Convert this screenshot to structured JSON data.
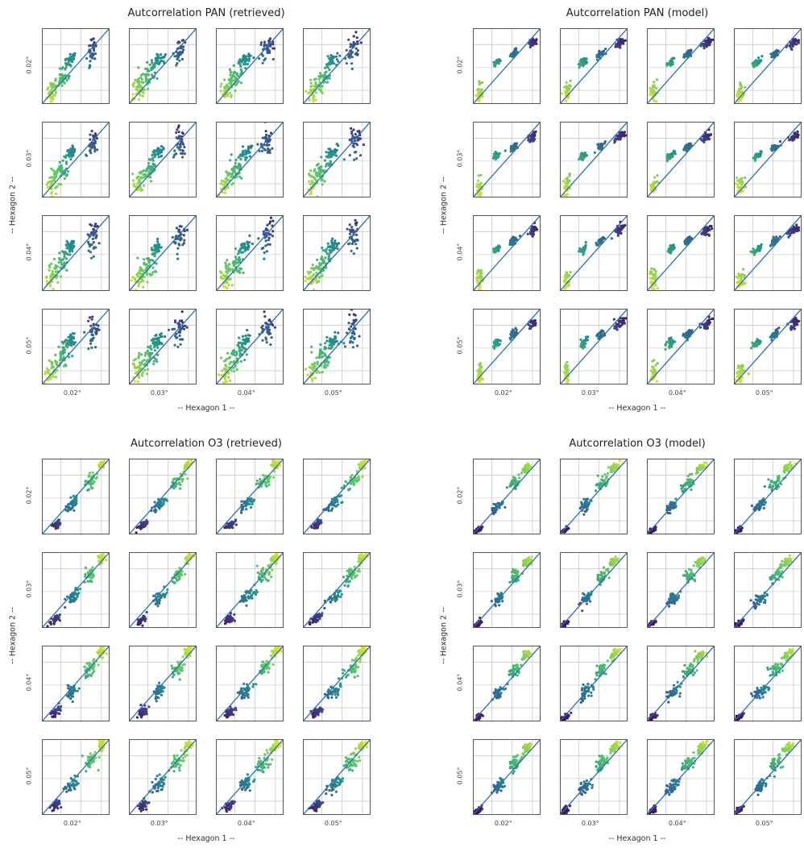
{
  "chart_data": [
    {
      "type": "scatter",
      "title": "Autcorrelation PAN (retrieved)",
      "xlabel": "-- Hexagon 1 --",
      "ylabel": "-- Hexagon 2 --",
      "row_labels": [
        "0.02°",
        "0.03°",
        "0.04°",
        "0.05°"
      ],
      "col_labels": [
        "0.02°",
        "0.03°",
        "0.04°",
        "0.05°"
      ],
      "grid": true,
      "identity_line": true,
      "colormap": "viridis",
      "color_order": "high-values-dark",
      "clusters": [
        [
          0.15,
          0.18,
          0.08,
          0.16
        ],
        [
          0.3,
          0.35,
          0.09,
          0.14
        ],
        [
          0.42,
          0.58,
          0.08,
          0.07
        ],
        [
          0.75,
          0.72,
          0.08,
          0.18
        ]
      ]
    },
    {
      "type": "scatter",
      "title": "Autcorrelation PAN (model)",
      "xlabel": "-- Hexagon 1 --",
      "ylabel": "-- Hexagon 2 --",
      "row_labels": [
        "0.02°",
        "0.03°",
        "0.04°",
        "0.05°"
      ],
      "col_labels": [
        "0.02°",
        "0.03°",
        "0.04°",
        "0.05°"
      ],
      "grid": true,
      "identity_line": true,
      "colormap": "viridis",
      "color_order": "high-values-dark",
      "clusters": [
        [
          0.1,
          0.15,
          0.04,
          0.12
        ],
        [
          0.35,
          0.55,
          0.05,
          0.04
        ],
        [
          0.6,
          0.66,
          0.05,
          0.04
        ],
        [
          0.88,
          0.8,
          0.06,
          0.05
        ]
      ]
    },
    {
      "type": "scatter",
      "title": "Autcorrelation O3 (retrieved)",
      "xlabel": "-- Hexagon 1 --",
      "ylabel": "-- Hexagon 2 --",
      "row_labels": [
        "0.02°",
        "0.03°",
        "0.04°",
        "0.05°"
      ],
      "col_labels": [
        "0.02°",
        "0.03°",
        "0.04°",
        "0.05°"
      ],
      "grid": true,
      "identity_line": true,
      "colormap": "viridis",
      "color_order": "high-values-bright",
      "clusters": [
        [
          0.2,
          0.12,
          0.07,
          0.05
        ],
        [
          0.45,
          0.4,
          0.09,
          0.08
        ],
        [
          0.72,
          0.7,
          0.09,
          0.09
        ],
        [
          0.88,
          0.92,
          0.05,
          0.05
        ]
      ]
    },
    {
      "type": "scatter",
      "title": "Autcorrelation O3 (model)",
      "xlabel": "-- Hexagon 1 --",
      "ylabel": "-- Hexagon 2 --",
      "row_labels": [
        "0.02°",
        "0.03°",
        "0.04°",
        "0.05°"
      ],
      "col_labels": [
        "0.02°",
        "0.03°",
        "0.04°",
        "0.05°"
      ],
      "grid": true,
      "identity_line": true,
      "colormap": "viridis",
      "color_order": "high-values-bright",
      "clusters": [
        [
          0.08,
          0.06,
          0.05,
          0.03
        ],
        [
          0.38,
          0.38,
          0.08,
          0.07
        ],
        [
          0.62,
          0.68,
          0.08,
          0.08
        ],
        [
          0.8,
          0.88,
          0.06,
          0.05
        ]
      ]
    }
  ],
  "colors": {
    "identity_line": "#2b6fb5",
    "spine": "#555555",
    "grid": "#bbbbbb",
    "viridis": [
      "#440154",
      "#3b528b",
      "#21918c",
      "#5ec962",
      "#fde725"
    ]
  }
}
